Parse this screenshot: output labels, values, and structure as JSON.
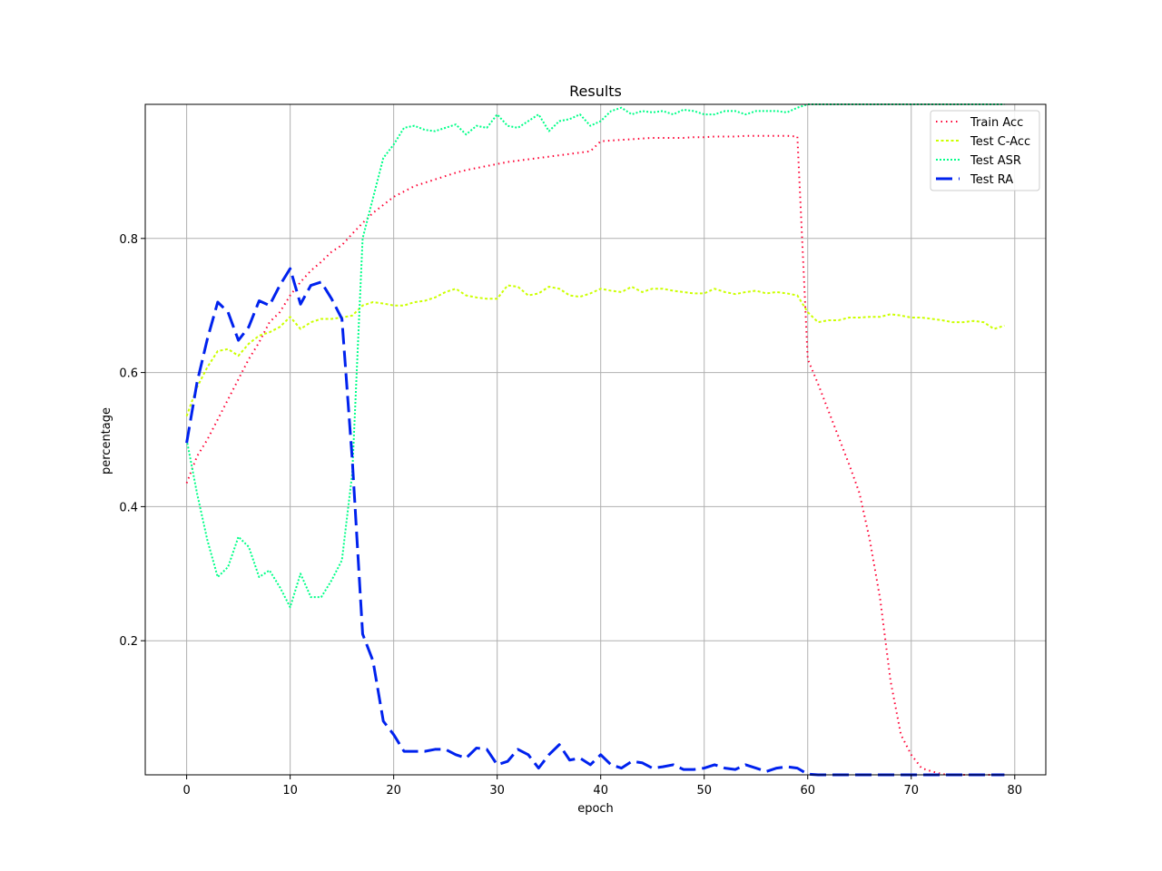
{
  "chart_data": {
    "type": "line",
    "title": "Results",
    "xlabel": "epoch",
    "ylabel": "percentage",
    "xlim": [
      -4,
      83
    ],
    "ylim": [
      0.0,
      1.0
    ],
    "xticks": [
      0,
      10,
      20,
      30,
      40,
      50,
      60,
      70,
      80
    ],
    "yticks": [
      0.2,
      0.4,
      0.6,
      0.8
    ],
    "xtick_labels": [
      "0",
      "10",
      "20",
      "30",
      "40",
      "50",
      "60",
      "70",
      "80"
    ],
    "ytick_labels": [
      "0.2",
      "0.4",
      "0.6",
      "0.8"
    ],
    "grid": true,
    "legend_position": "top-right",
    "x": [
      0,
      1,
      2,
      3,
      4,
      5,
      6,
      7,
      8,
      9,
      10,
      11,
      12,
      13,
      14,
      15,
      16,
      17,
      18,
      19,
      20,
      21,
      22,
      23,
      24,
      25,
      26,
      27,
      28,
      29,
      30,
      31,
      32,
      33,
      34,
      35,
      36,
      37,
      38,
      39,
      40,
      41,
      42,
      43,
      44,
      45,
      46,
      47,
      48,
      49,
      50,
      51,
      52,
      53,
      54,
      55,
      56,
      57,
      58,
      59,
      60,
      61,
      62,
      63,
      64,
      65,
      66,
      67,
      68,
      69,
      70,
      71,
      72,
      73,
      74,
      75,
      76,
      77,
      78,
      79
    ],
    "series": [
      {
        "name": "Train Acc",
        "color": "#ff0033",
        "values": [
          0.435,
          0.475,
          0.5,
          0.53,
          0.56,
          0.59,
          0.62,
          0.645,
          0.675,
          0.69,
          0.715,
          0.735,
          0.752,
          0.765,
          0.78,
          0.79,
          0.807,
          0.823,
          0.838,
          0.85,
          0.862,
          0.87,
          0.878,
          0.883,
          0.888,
          0.893,
          0.898,
          0.902,
          0.905,
          0.908,
          0.911,
          0.914,
          0.916,
          0.918,
          0.92,
          0.922,
          0.924,
          0.926,
          0.928,
          0.93,
          0.945,
          0.946,
          0.947,
          0.948,
          0.949,
          0.95,
          0.95,
          0.95,
          0.95,
          0.951,
          0.951,
          0.952,
          0.952,
          0.952,
          0.953,
          0.953,
          0.953,
          0.953,
          0.953,
          0.952,
          0.62,
          0.583,
          0.543,
          0.503,
          0.463,
          0.42,
          0.35,
          0.262,
          0.14,
          0.06,
          0.03,
          0.01,
          0.005,
          0.001,
          0.0,
          0.0,
          0.0,
          0.0,
          0.0,
          0.0
        ]
      },
      {
        "name": "Test C-Acc",
        "color": "#ccff00",
        "values": [
          0.535,
          0.578,
          0.608,
          0.632,
          0.635,
          0.625,
          0.643,
          0.655,
          0.66,
          0.668,
          0.683,
          0.665,
          0.675,
          0.68,
          0.68,
          0.682,
          0.685,
          0.7,
          0.705,
          0.703,
          0.7,
          0.7,
          0.705,
          0.707,
          0.712,
          0.72,
          0.725,
          0.715,
          0.712,
          0.71,
          0.71,
          0.73,
          0.728,
          0.715,
          0.718,
          0.728,
          0.725,
          0.715,
          0.713,
          0.718,
          0.725,
          0.722,
          0.72,
          0.728,
          0.72,
          0.725,
          0.725,
          0.722,
          0.72,
          0.718,
          0.718,
          0.725,
          0.72,
          0.717,
          0.72,
          0.722,
          0.718,
          0.72,
          0.718,
          0.715,
          0.69,
          0.675,
          0.678,
          0.678,
          0.682,
          0.682,
          0.683,
          0.683,
          0.687,
          0.685,
          0.682,
          0.682,
          0.68,
          0.678,
          0.675,
          0.675,
          0.677,
          0.675,
          0.665,
          0.67
        ]
      },
      {
        "name": "Test ASR",
        "color": "#00ff88",
        "values": [
          0.5,
          0.42,
          0.35,
          0.295,
          0.31,
          0.355,
          0.34,
          0.295,
          0.305,
          0.28,
          0.25,
          0.3,
          0.265,
          0.265,
          0.29,
          0.32,
          0.45,
          0.8,
          0.86,
          0.92,
          0.94,
          0.965,
          0.968,
          0.962,
          0.96,
          0.965,
          0.97,
          0.955,
          0.968,
          0.965,
          0.985,
          0.968,
          0.965,
          0.975,
          0.985,
          0.96,
          0.975,
          0.978,
          0.985,
          0.968,
          0.975,
          0.99,
          0.995,
          0.985,
          0.99,
          0.988,
          0.99,
          0.985,
          0.992,
          0.99,
          0.985,
          0.985,
          0.99,
          0.99,
          0.985,
          0.99,
          0.99,
          0.99,
          0.988,
          0.995,
          1.0,
          1.0,
          1.0,
          1.0,
          1.0,
          1.0,
          1.0,
          1.0,
          1.0,
          1.0,
          1.0,
          1.0,
          1.0,
          1.0,
          1.0,
          1.0,
          1.0,
          1.0,
          1.0,
          1.0
        ]
      },
      {
        "name": "Test RA",
        "color": "#0022ee",
        "values": [
          0.495,
          0.585,
          0.65,
          0.705,
          0.69,
          0.648,
          0.668,
          0.707,
          0.7,
          0.73,
          0.755,
          0.702,
          0.73,
          0.735,
          0.71,
          0.68,
          0.47,
          0.21,
          0.17,
          0.08,
          0.06,
          0.035,
          0.035,
          0.035,
          0.038,
          0.038,
          0.03,
          0.025,
          0.04,
          0.038,
          0.015,
          0.02,
          0.038,
          0.03,
          0.01,
          0.03,
          0.045,
          0.022,
          0.025,
          0.015,
          0.03,
          0.015,
          0.01,
          0.02,
          0.018,
          0.01,
          0.012,
          0.015,
          0.008,
          0.008,
          0.01,
          0.015,
          0.01,
          0.008,
          0.015,
          0.01,
          0.005,
          0.01,
          0.012,
          0.01,
          0.001,
          0.0,
          0.0,
          0.0,
          0.0,
          0.0,
          0.0,
          0.0,
          0.0,
          0.0,
          0.0,
          0.0,
          0.0,
          0.0,
          0.0,
          0.0,
          0.0,
          0.0,
          0.0,
          0.0
        ]
      }
    ]
  }
}
